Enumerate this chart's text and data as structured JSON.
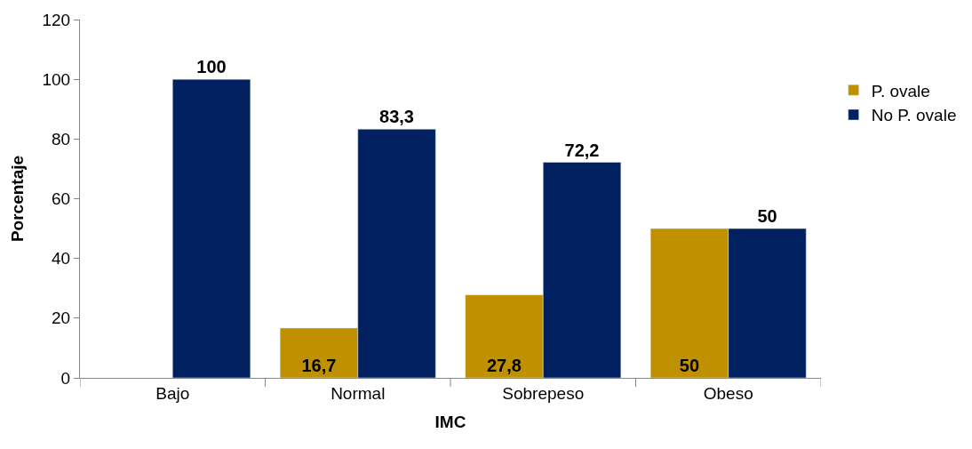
{
  "chart_data": {
    "type": "bar",
    "xlabel": "IMC",
    "ylabel": "Porcentaje",
    "categories": [
      "Bajo",
      "Normal",
      "Sobrepeso",
      "Obeso"
    ],
    "series": [
      {
        "name": "P. ovale",
        "color": "#bf9000",
        "values": [
          null,
          16.7,
          27.8,
          50
        ],
        "value_labels": [
          null,
          "16,7",
          "27,8",
          "50"
        ]
      },
      {
        "name": "No P. ovale",
        "color": "#002060",
        "values": [
          100,
          83.3,
          72.2,
          50
        ],
        "value_labels": [
          "100",
          "83,3",
          "72,2",
          "50"
        ]
      }
    ],
    "ylim": [
      0,
      120
    ],
    "yticks": [
      0,
      20,
      40,
      60,
      80,
      100,
      120
    ],
    "grid": false,
    "legend": "right"
  }
}
